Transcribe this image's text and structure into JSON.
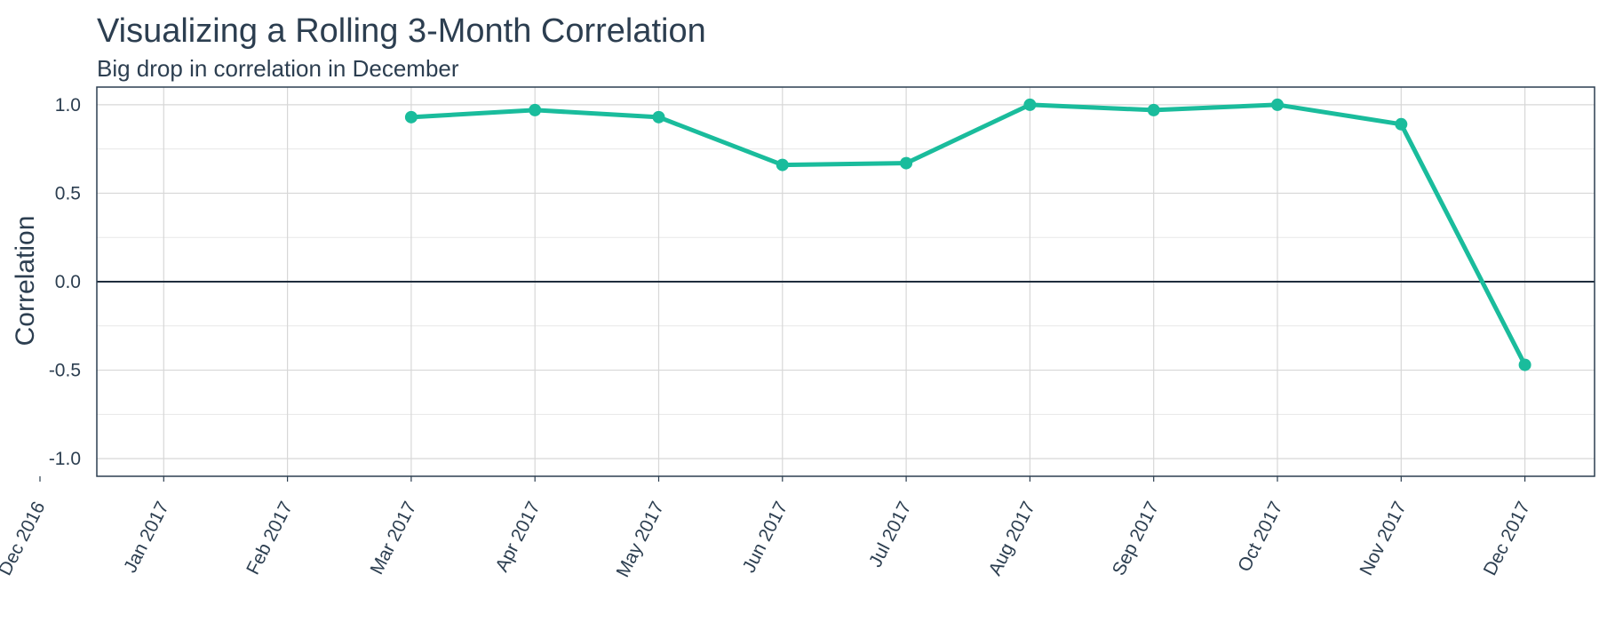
{
  "chart_data": {
    "type": "line",
    "title": "Visualizing a Rolling 3-Month Correlation",
    "subtitle": "Big drop in correlation in December",
    "xlabel": "",
    "ylabel": "Correlation",
    "x": [
      "Mar 2017",
      "Apr 2017",
      "May 2017",
      "Jun 2017",
      "Jul 2017",
      "Aug 2017",
      "Sep 2017",
      "Oct 2017",
      "Nov 2017",
      "Dec 2017"
    ],
    "series": [
      {
        "values": [
          0.93,
          0.97,
          0.93,
          0.66,
          0.67,
          1.0,
          0.97,
          1.0,
          0.89,
          -0.47
        ],
        "color": "#1abc9c"
      }
    ],
    "x_ticks": [
      "Dec 2016",
      "Jan 2017",
      "Feb 2017",
      "Mar 2017",
      "Apr 2017",
      "May 2017",
      "Jun 2017",
      "Jul 2017",
      "Aug 2017",
      "Sep 2017",
      "Oct 2017",
      "Nov 2017",
      "Dec 2017"
    ],
    "xlim": [
      "Dec 2016",
      "Dec 2017"
    ],
    "y_ticks": [
      "1.0",
      "0.5",
      "0.0",
      "-0.5",
      "-1.0"
    ],
    "ylim": [
      -1.1,
      1.1
    ],
    "grid": true,
    "reference_line_y": 0
  }
}
